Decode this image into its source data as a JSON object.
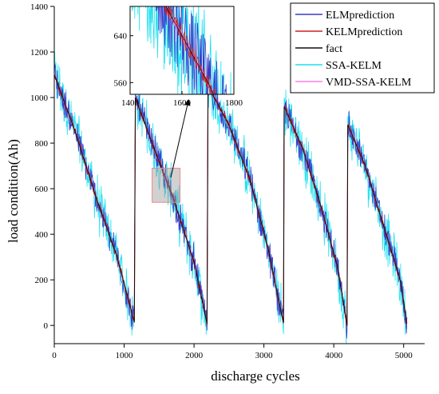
{
  "chart_data": {
    "type": "line",
    "xlabel": "discharge cycles",
    "ylabel": "load condition(Ah)",
    "xlim": [
      0,
      5300
    ],
    "ylim": [
      -80,
      1400
    ],
    "xticks": [
      0,
      1000,
      2000,
      3000,
      4000,
      5000
    ],
    "yticks": [
      0,
      200,
      400,
      600,
      800,
      1000,
      1200,
      1400
    ],
    "legend_position": "top-right",
    "series": [
      {
        "name": "ELMprediction",
        "color": "#3a3acb",
        "noise": 55
      },
      {
        "name": "KELMprediction",
        "color": "#cc2222",
        "noise": 12
      },
      {
        "name": "fact",
        "color": "#111111",
        "noise": 0
      },
      {
        "name": "SSA-KELM",
        "color": "#19e0ee",
        "noise": 95
      },
      {
        "name": "VMD-SSA-KELM",
        "color": "#ff7fe0",
        "noise": 6
      }
    ],
    "fact_segments": [
      {
        "x": [
          0,
          300,
          600,
          900,
          1150
        ],
        "y": [
          1100,
          850,
          560,
          300,
          10
        ]
      },
      {
        "x": [
          1160,
          1400,
          1700,
          2000,
          2190
        ],
        "y": [
          1000,
          800,
          560,
          280,
          0
        ]
      },
      {
        "x": [
          2200,
          2500,
          2800,
          3050,
          3280
        ],
        "y": [
          1050,
          880,
          640,
          350,
          10
        ]
      },
      {
        "x": [
          3290,
          3550,
          3800,
          4050,
          4190
        ],
        "y": [
          960,
          780,
          540,
          260,
          0
        ]
      },
      {
        "x": [
          4200,
          4450,
          4700,
          4950,
          5050
        ],
        "y": [
          880,
          700,
          450,
          200,
          0
        ]
      }
    ],
    "zoom_region": {
      "x": [
        1400,
        1800
      ],
      "y": [
        540,
        690
      ]
    },
    "inset": {
      "xlim": [
        1400,
        1800
      ],
      "ylim": [
        540,
        690
      ],
      "xticks": [
        1400,
        1600,
        1800
      ],
      "yticks": [
        560,
        640
      ]
    }
  }
}
